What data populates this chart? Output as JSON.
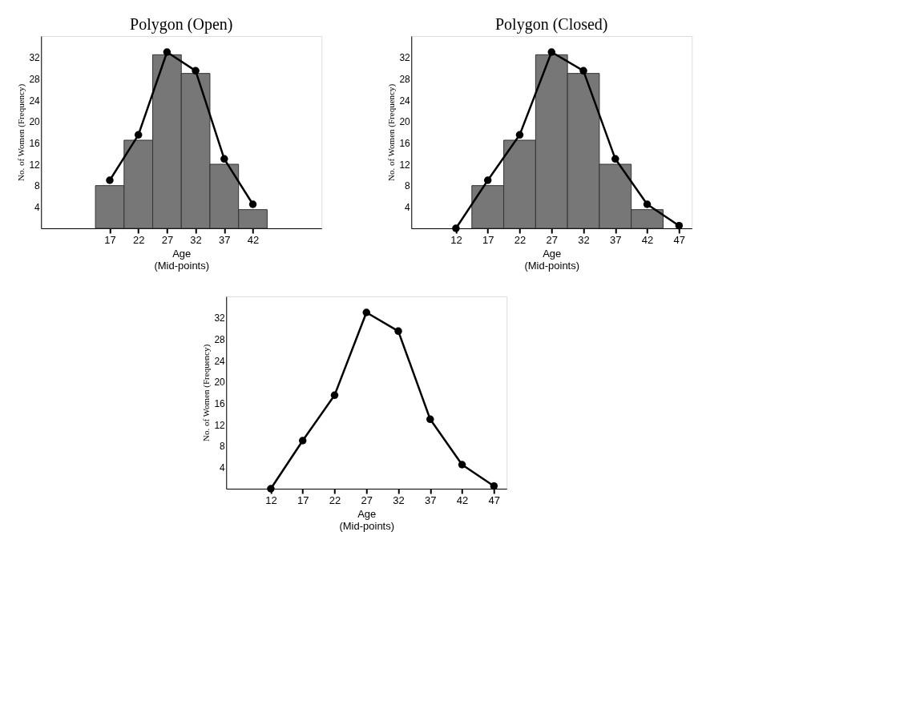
{
  "chart_data": [
    {
      "type": "histogram",
      "title": "Polygon (Open)",
      "xlabel": "Age",
      "ylabel": "No. of Women  (Frequency)",
      "annotations": [
        "(Mid-points)"
      ],
      "bins": [
        14.5,
        19.5,
        24.5,
        29.5,
        34.5,
        39.5,
        44.5
      ],
      "values": [
        8,
        16.5,
        32.5,
        29,
        12,
        3.5
      ],
      "color": "#777777",
      "series": [
        {
          "type": "line",
          "color": "#000000",
          "x": [
            17,
            22,
            27,
            32,
            37,
            42
          ],
          "values": [
            9,
            17.5,
            33,
            29.5,
            13,
            4.5
          ]
        }
      ],
      "marker": "circle",
      "xlim": [
        5,
        54
      ],
      "xticks": [
        17,
        22,
        27,
        32,
        37,
        42
      ],
      "ylim": [
        0,
        36
      ],
      "yticks": [
        4,
        8,
        12,
        16,
        20,
        24,
        28,
        32
      ],
      "grid": false,
      "legend": false
    },
    {
      "type": "histogram",
      "title": "Polygon (Closed)",
      "xlabel": "Age",
      "ylabel": "No. of Women  (Frequency)",
      "annotations": [
        "(Mid-points)"
      ],
      "bins": [
        14.5,
        19.5,
        24.5,
        29.5,
        34.5,
        39.5,
        44.5
      ],
      "values": [
        8,
        16.5,
        32.5,
        29,
        12,
        3.5
      ],
      "color": "#777777",
      "series": [
        {
          "type": "line",
          "color": "#000000",
          "x": [
            12,
            17,
            22,
            27,
            32,
            37,
            42,
            47
          ],
          "values": [
            0,
            9,
            17.5,
            33,
            29.5,
            13,
            4.5,
            0.5
          ]
        }
      ],
      "marker": "circle",
      "xlim": [
        5,
        49
      ],
      "xticks": [
        12,
        17,
        22,
        27,
        32,
        37,
        42,
        47
      ],
      "ylim": [
        0,
        36
      ],
      "yticks": [
        4,
        8,
        12,
        16,
        20,
        24,
        28,
        32
      ],
      "grid": false,
      "legend": false
    },
    {
      "type": "line",
      "xlabel": "Age",
      "ylabel": "No. of Women  (Frequency)",
      "annotations": [
        "(Mid-points)"
      ],
      "series": [
        {
          "color": "#000000",
          "x": [
            12,
            17,
            22,
            27,
            32,
            37,
            42,
            47
          ],
          "values": [
            0,
            9,
            17.5,
            33,
            29.5,
            13,
            4.5,
            0.5
          ]
        }
      ],
      "marker": "circle",
      "xlim": [
        5,
        49
      ],
      "xticks": [
        12,
        17,
        22,
        27,
        32,
        37,
        42,
        47
      ],
      "ylim": [
        0,
        36
      ],
      "yticks": [
        4,
        8,
        12,
        16,
        20,
        24,
        28,
        32
      ],
      "grid": false,
      "legend": false
    }
  ]
}
